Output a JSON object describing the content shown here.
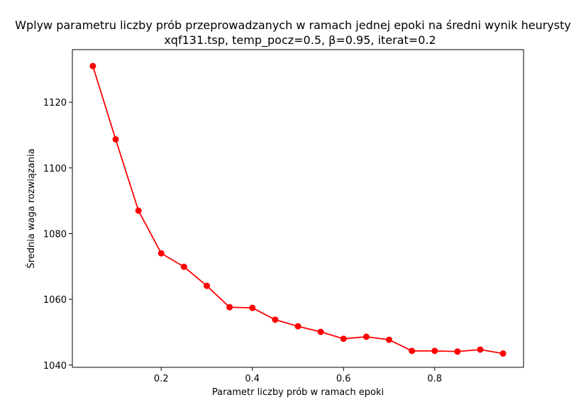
{
  "chart_data": {
    "type": "line",
    "title": "Wplyw parametru liczby prób przeprowadzanych w ramach jednej epoki na średni wynik heurysty",
    "subtitle": "xqf131.tsp, temp_pocz=0.5, β=0.95, iterat=0.2",
    "xlabel": "Parametr liczby prób w ramach epoki",
    "ylabel": "Średnia waga rozwiązania",
    "xlim": [
      0.005,
      0.995
    ],
    "ylim": [
      1039.3,
      1136
    ],
    "x_ticks": [
      0.2,
      0.4,
      0.6,
      0.8
    ],
    "x_tick_labels": [
      "0.2",
      "0.4",
      "0.6",
      "0.8"
    ],
    "y_ticks": [
      1040,
      1060,
      1080,
      1100,
      1120
    ],
    "y_tick_labels": [
      "1040",
      "1060",
      "1080",
      "1100",
      "1120"
    ],
    "grid": false,
    "series": [
      {
        "color": "#ff0000",
        "marker": "circle",
        "x": [
          0.05,
          0.1,
          0.15,
          0.2,
          0.25,
          0.3,
          0.35,
          0.4,
          0.45,
          0.5,
          0.55,
          0.6,
          0.65,
          0.7,
          0.75,
          0.8,
          0.85,
          0.9,
          0.95
        ],
        "y": [
          1131.0,
          1108.7,
          1087.0,
          1074.0,
          1069.9,
          1064.1,
          1057.6,
          1057.4,
          1053.8,
          1051.8,
          1050.1,
          1048.0,
          1048.6,
          1047.7,
          1044.3,
          1044.3,
          1044.1,
          1044.7,
          1043.5
        ]
      }
    ]
  }
}
